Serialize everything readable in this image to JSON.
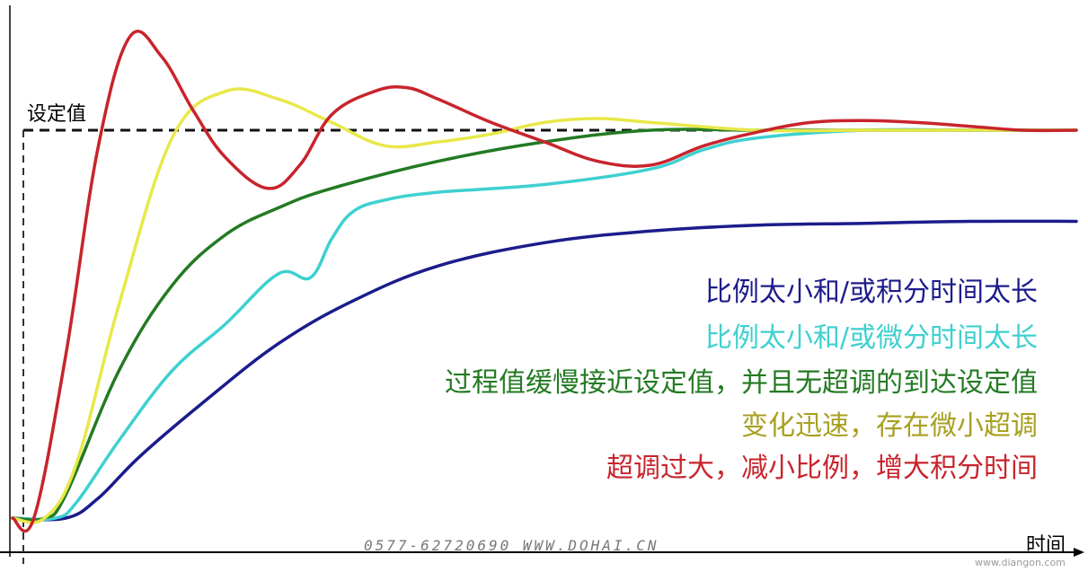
{
  "chart_data": {
    "type": "line",
    "xlabel": "时间",
    "setpoint_label": "设定值",
    "setpoint": 1.0,
    "x_range": [
      0,
      100
    ],
    "y_range": [
      0,
      1.25
    ],
    "series": [
      {
        "name": "比例太小和/或积分时间太长",
        "color": "#1c1c8c",
        "x": [
          0,
          5,
          8,
          12,
          18,
          25,
          32,
          40,
          50,
          60,
          70,
          80,
          90,
          100
        ],
        "y": [
          0,
          0,
          0.05,
          0.16,
          0.3,
          0.45,
          0.56,
          0.65,
          0.71,
          0.74,
          0.755,
          0.76,
          0.765,
          0.765
        ]
      },
      {
        "name": "比例太小和/或微分时间太长",
        "color": "#3fd0d0",
        "x": [
          0,
          4,
          6,
          10,
          15,
          20,
          25,
          28,
          30,
          32,
          35,
          40,
          50,
          60,
          65,
          70,
          80,
          90,
          100
        ],
        "y": [
          0,
          0,
          0.04,
          0.2,
          0.38,
          0.5,
          0.63,
          0.62,
          0.72,
          0.79,
          0.82,
          0.84,
          0.86,
          0.9,
          0.95,
          0.98,
          1.0,
          1.0,
          1.0
        ]
      },
      {
        "name": "过程值缓慢接近设定值，并且无超调的到达设定值",
        "color": "#237a23",
        "x": [
          0,
          3,
          5,
          10,
          15,
          20,
          25,
          30,
          40,
          50,
          60,
          70,
          80,
          90,
          100
        ],
        "y": [
          0,
          0,
          0.06,
          0.38,
          0.6,
          0.73,
          0.8,
          0.85,
          0.92,
          0.97,
          1.0,
          1.0,
          1.0,
          1.0,
          1.0
        ]
      },
      {
        "name": "变化迅速，存在微小超调",
        "color": "#e8e84a",
        "x": [
          0,
          3,
          6,
          10,
          15,
          20,
          25,
          30,
          35,
          40,
          45,
          50,
          55,
          60,
          70,
          80,
          90,
          100
        ],
        "y": [
          0,
          0,
          0.14,
          0.55,
          0.98,
          1.1,
          1.08,
          1.02,
          0.96,
          0.97,
          0.99,
          1.02,
          1.03,
          1.02,
          1.0,
          1.0,
          1.0,
          1.0
        ]
      },
      {
        "name": "超调过大，减小比例，增大积分时间",
        "color": "#c8242c",
        "x": [
          0,
          2,
          5,
          8,
          11,
          14,
          17,
          20,
          24,
          27,
          30,
          34,
          37,
          40,
          45,
          50,
          55,
          60,
          65,
          70,
          75,
          80,
          85,
          90,
          95,
          100
        ],
        "y": [
          0,
          0,
          0.42,
          0.95,
          1.24,
          1.19,
          1.05,
          0.93,
          0.85,
          0.91,
          1.04,
          1.1,
          1.11,
          1.08,
          1.02,
          0.97,
          0.92,
          0.91,
          0.96,
          0.995,
          1.02,
          1.025,
          1.02,
          1.01,
          1.0,
          1.0
        ]
      }
    ]
  },
  "watermark": "0577-62720690    WWW.DOHAI.CN",
  "watermark2": "www.diangon.com"
}
